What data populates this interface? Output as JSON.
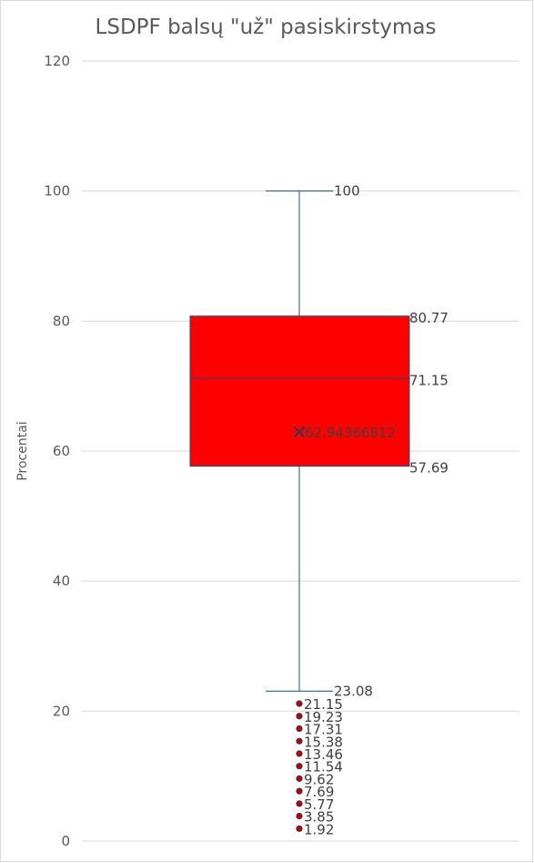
{
  "chart_data": {
    "type": "box",
    "title": "LSDPF balsų \"už\" pasiskirstymas",
    "ylabel": "Procentai",
    "xlabel": "",
    "ylim": [
      0,
      120
    ],
    "y_ticks": [
      0,
      20,
      40,
      60,
      80,
      100,
      120
    ],
    "grid": true,
    "colors": {
      "box_fill": "#ff0000",
      "box_edge": "#1f4e79",
      "outlier": "#c00000",
      "grid": "#d9d9d9"
    },
    "box": {
      "whisker_high": 100,
      "q3": 80.77,
      "median": 71.15,
      "mean": 62.94366812,
      "q1": 57.69,
      "whisker_low": 23.08
    },
    "labels": {
      "whisker_high": "100",
      "q3": "80.77",
      "median": "71.15",
      "mean": "62.94366812",
      "q1": "57.69",
      "whisker_low": "23.08"
    },
    "outliers": [
      21.15,
      19.23,
      17.31,
      15.38,
      13.46,
      11.54,
      9.62,
      7.69,
      5.77,
      3.85,
      1.92
    ],
    "outlier_labels": [
      "21.15",
      "19.23",
      "17.31",
      "15.38",
      "13.46",
      "11.54",
      "9.62",
      "7.69",
      "5.77",
      "3.85",
      "1.92"
    ]
  }
}
